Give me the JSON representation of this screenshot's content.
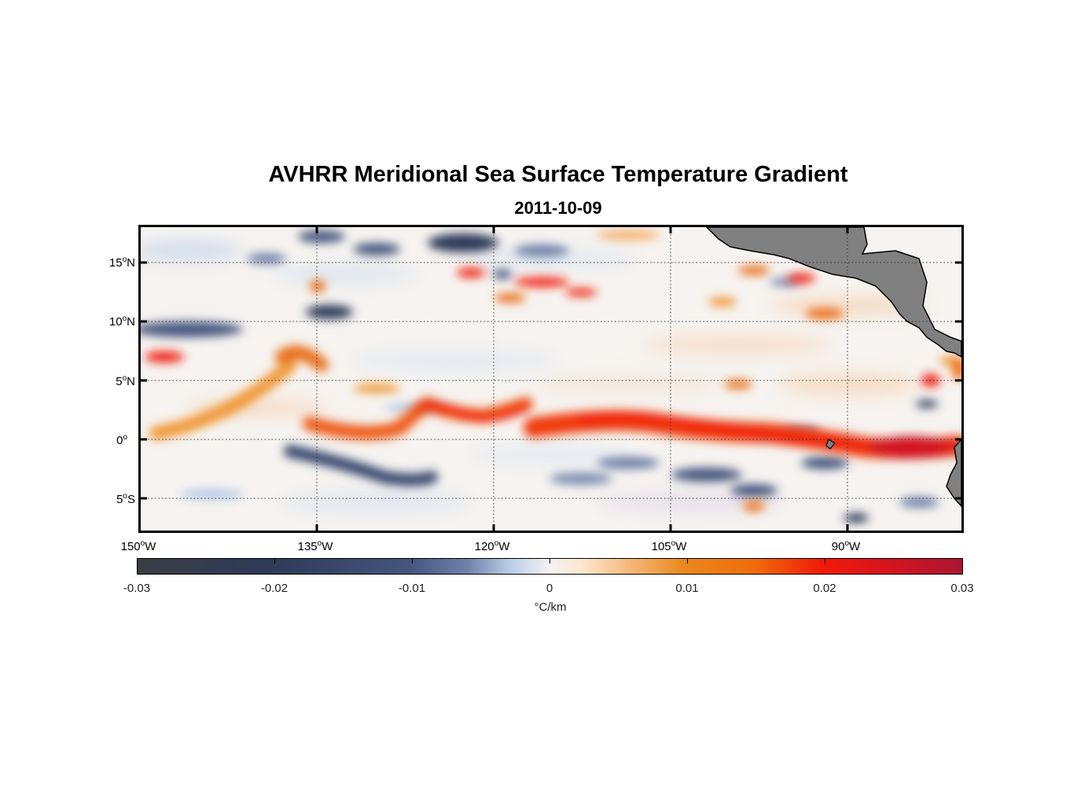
{
  "title": "AVHRR Meridional Sea Surface Temperature Gradient",
  "subtitle": "2011-10-09",
  "map": {
    "lat_ticks": [
      {
        "deg": "15",
        "hemi": "N"
      },
      {
        "deg": "10",
        "hemi": "N"
      },
      {
        "deg": "5",
        "hemi": "N"
      },
      {
        "deg": "0",
        "hemi": ""
      },
      {
        "deg": "5",
        "hemi": "S"
      }
    ],
    "lon_ticks": [
      {
        "deg": "150",
        "hemi": "W"
      },
      {
        "deg": "135",
        "hemi": "W"
      },
      {
        "deg": "120",
        "hemi": "W"
      },
      {
        "deg": "105",
        "hemi": "W"
      },
      {
        "deg": "90",
        "hemi": "W"
      }
    ],
    "degree_symbol": "o",
    "land_color": "#808080",
    "grid_style": "dotted"
  },
  "colorbar": {
    "ticks": [
      "-0.03",
      "-0.02",
      "-0.01",
      "0",
      "0.01",
      "0.02",
      "0.03"
    ],
    "unit": "°C/km",
    "colors": {
      "neg_max": "#3a3d45",
      "neg_mid": "#2d3a58",
      "zero": "#f3f3f3",
      "pos_mid": "#ef6a0b",
      "pos_max": "#a91631"
    }
  }
}
